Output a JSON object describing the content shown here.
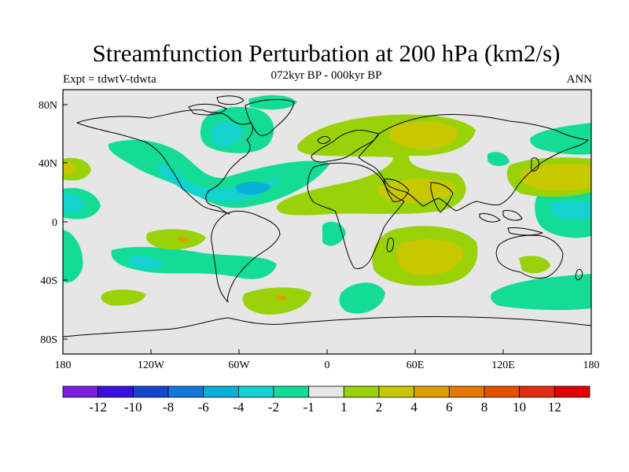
{
  "title": "Streamfunction Perturbation at 200 hPa (km2/s)",
  "subtitle_left": "Expt = tdwtV-tdwta",
  "subtitle_center": "072kyr BP - 000kyr BP",
  "subtitle_right": "ANN",
  "x_ticks": [
    "180",
    "120W",
    "60W",
    "0",
    "60E",
    "120E",
    "180"
  ],
  "y_ticks": [
    "80N",
    "40N",
    "0",
    "40S",
    "80S"
  ],
  "colorbar": {
    "colors": [
      "#7a1fe0",
      "#3a0fe0",
      "#1446d0",
      "#1478d8",
      "#0ab0d8",
      "#14d2d0",
      "#14dc96",
      "#e6e6e6",
      "#9ad20a",
      "#c8c800",
      "#dca000",
      "#e27a00",
      "#e25000",
      "#e02e14",
      "#e00000"
    ],
    "labels": [
      "-12",
      "-10",
      "-8",
      "-6",
      "-4",
      "-2",
      "-1",
      "1",
      "2",
      "4",
      "6",
      "8",
      "10",
      "12"
    ]
  },
  "colors": {
    "background": "#e6e6e6",
    "coast": "#000000"
  }
}
